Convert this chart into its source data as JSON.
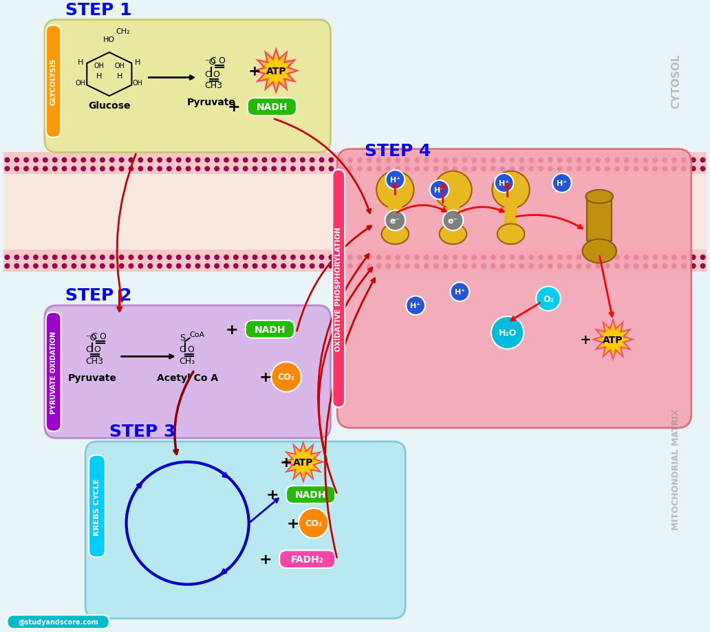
{
  "bg_color": "#e8f4f8",
  "cytosol_color": "#e8f4f8",
  "membrane_color": "#f5d0d0",
  "matrix_color": "#f0ebe0",
  "membrane_line_color": "#a0004a",
  "step1_box_color": "#e8e8a0",
  "step2_box_color": "#d8b8e8",
  "step3_box_color": "#b8e8f0",
  "step4_box_color": "#f0b0b8",
  "orange_label_color": "#ff9900",
  "purple_label_color": "#9900cc",
  "cyan_label_color": "#00ccff",
  "red_label_color": "#ff0055",
  "step_title_color": "#0000ff",
  "title": "STEP 1",
  "step2_title": "STEP 2",
  "step3_title": "STEP 3",
  "step4_title": "STEP 4",
  "cytosol_text": "CYTOSOL",
  "matrix_text": "MITOCHONDRIAL MATRIX",
  "op_text": "OXIDATIVE PHOSPHORYLATION",
  "glycolysis_text": "GLYCOLYSIS",
  "pyruvate_ox_text": "PYRUVATE OXIDATION",
  "krebs_text": "KREBS CYCLE"
}
